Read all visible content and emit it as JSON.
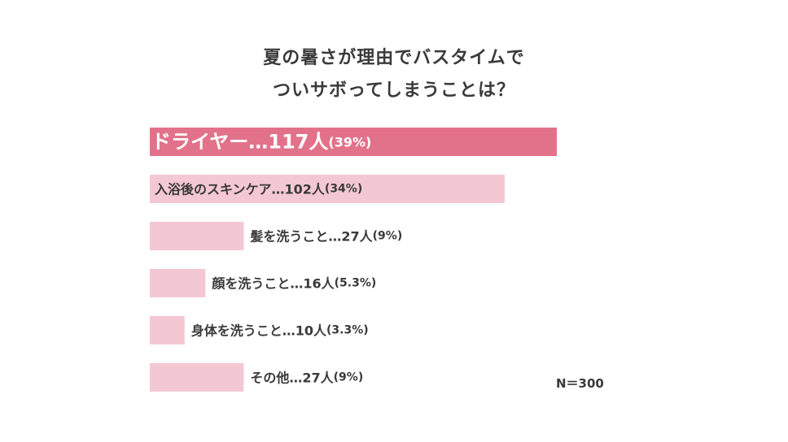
{
  "title_lines": [
    "夏の暑さが理由でバスタイムで",
    "ついサボってしまうことは？"
  ],
  "n_label": "N＝300",
  "colors": {
    "highlight_bar": "#e2728a",
    "bar": "#f4c8d3",
    "highlight_text": "#ffffff",
    "text": "#3a3a3a"
  },
  "chart_data": {
    "type": "bar",
    "orientation": "horizontal",
    "categories": [
      "ドライヤー",
      "入浴後のスキンケア",
      "髪を洗うこと",
      "顔を洗うこと",
      "身体を洗うこと",
      "その他"
    ],
    "values": [
      117,
      102,
      27,
      16,
      10,
      27
    ],
    "percent": [
      39,
      34,
      9,
      5.3,
      3.3,
      9
    ],
    "labels": [
      {
        "main": "ドライヤー…117人",
        "pct": "(39%)"
      },
      {
        "main": "入浴後のスキンケア…102人",
        "pct": "(34%)"
      },
      {
        "main": "髪を洗うこと…27人",
        "pct": "(9%)"
      },
      {
        "main": "顔を洗うこと…16人",
        "pct": "(5.3%)"
      },
      {
        "main": "身体を洗うこと…10人",
        "pct": "(3.3%)"
      },
      {
        "main": "その他…27人",
        "pct": "(9%)"
      }
    ],
    "highlight_index": 0,
    "xlim": [
      0,
      117
    ]
  }
}
